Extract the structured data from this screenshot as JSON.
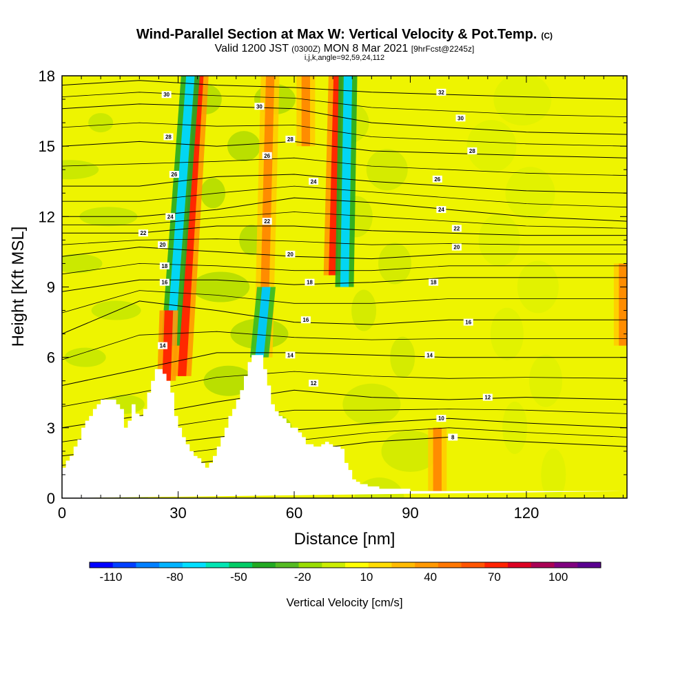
{
  "chart_data": {
    "type": "heatmap",
    "title": "Wind-Parallel Section at Max W: Vertical Velocity & Pot.Temp.",
    "title_mark": "(C)",
    "subtitle": {
      "part1": "Valid 1200 JST",
      "utc": "(0300Z)",
      "part2": "MON 8 Mar 2021",
      "fcst": "[9hrFcst@2245z]"
    },
    "params": "i,j,k,angle=92,59,24,112",
    "xlabel": "Distance [nm]",
    "ylabel": "Height [Kft MSL]",
    "xlim": [
      0,
      146
    ],
    "ylim": [
      0,
      18
    ],
    "xticks": [
      0,
      30,
      60,
      90,
      120
    ],
    "yticks": [
      0,
      3,
      6,
      9,
      12,
      15,
      18
    ],
    "colorbar": {
      "label": "Vertical Velocity [cm/s]",
      "tick_labels": [
        -110,
        -80,
        -50,
        -20,
        10,
        40,
        70,
        100
      ],
      "colors": [
        "#0000ff",
        "#0040ff",
        "#0080ff",
        "#00b4ff",
        "#00e0ff",
        "#00e6b4",
        "#00cc66",
        "#22aa22",
        "#55bb22",
        "#99dd00",
        "#ccee00",
        "#ffff00",
        "#ffdd00",
        "#ffbb00",
        "#ff9900",
        "#ff7700",
        "#ff5500",
        "#ff2200",
        "#dd0022",
        "#aa0055",
        "#800080",
        "#5a0090"
      ]
    },
    "terrain_profile": {
      "x_nm": [
        0,
        1,
        2,
        3,
        4,
        5,
        6,
        7,
        8,
        9,
        10,
        11,
        12,
        13,
        14,
        15,
        16,
        17,
        18,
        19,
        20,
        21,
        22,
        23,
        24,
        25,
        26,
        27,
        28,
        29,
        30,
        31,
        32,
        33,
        34,
        35,
        36,
        37,
        38,
        39,
        40,
        41,
        42,
        43,
        44,
        45,
        46,
        47,
        48,
        49,
        50,
        51,
        52,
        53,
        54,
        55,
        56,
        57,
        58,
        59,
        60,
        61,
        62,
        63,
        64,
        65,
        66,
        67,
        68,
        69,
        70,
        71,
        72,
        73,
        74,
        75,
        76,
        77,
        78,
        79,
        80,
        81,
        82,
        83,
        84,
        85,
        86,
        87,
        88,
        89,
        90,
        91,
        92,
        93,
        94,
        95,
        96,
        97,
        98,
        99,
        100,
        101,
        102,
        103,
        104,
        105,
        106,
        107,
        108,
        109,
        110,
        111,
        112,
        113,
        114,
        115,
        116,
        117,
        118,
        119,
        120,
        121,
        122,
        123,
        124,
        125,
        126,
        127,
        128,
        129,
        130,
        131,
        132,
        133,
        134,
        135,
        136,
        137,
        138,
        139,
        140,
        141,
        142,
        143,
        144,
        145,
        146
      ],
      "height_kft": [
        1.3,
        1.6,
        1.8,
        2.2,
        2.5,
        3.0,
        3.3,
        3.5,
        3.8,
        4.0,
        4.2,
        4.2,
        4.2,
        4.2,
        4.0,
        3.8,
        3.0,
        3.3,
        4.0,
        3.6,
        3.5,
        3.8,
        4.5,
        5.0,
        5.5,
        5.5,
        5.3,
        5.0,
        4.5,
        3.5,
        3.0,
        2.6,
        2.3,
        2.0,
        1.8,
        1.7,
        1.5,
        1.3,
        1.5,
        1.8,
        2.2,
        2.6,
        3.0,
        3.5,
        3.8,
        4.2,
        4.6,
        5.2,
        5.8,
        6.1,
        6.1,
        6.1,
        5.5,
        4.8,
        4.0,
        3.7,
        3.5,
        3.4,
        3.2,
        3.0,
        3.0,
        2.8,
        2.6,
        2.3,
        2.3,
        2.2,
        2.2,
        2.3,
        2.4,
        2.3,
        2.2,
        2.2,
        2.1,
        1.5,
        1.2,
        0.8,
        0.7,
        0.6,
        0.6,
        0.5,
        0.5,
        0.5,
        0.4,
        0.4,
        0.4,
        0.4,
        0.4,
        0.4,
        0.4,
        0.4,
        0.3,
        0.3,
        0.3,
        0.3,
        0.3,
        0.3,
        0.3,
        0.3,
        0.3,
        0.3,
        0.3,
        0.3,
        0.3,
        0.3,
        0.3,
        0.3,
        0.3,
        0.3,
        0.3,
        0.3,
        0.3,
        0.3,
        0.3,
        0.3,
        0.3,
        0.3,
        0.3,
        0.3,
        0.3,
        0.3,
        0.3,
        0.3,
        0.3,
        0.3,
        0.3,
        0.3,
        0.3,
        0.3,
        0.3,
        0.3,
        0.3,
        0.3,
        0.3,
        0.3,
        0.3,
        0.3,
        0.3,
        0.3,
        0.3,
        0.3,
        0.3,
        0.3,
        0.3,
        0.3,
        0.3
      ]
    },
    "vertical_velocity_features": [
      {
        "name": "updraft",
        "x_nm": 31,
        "base_kft": 5.2,
        "top_kft": 18,
        "tilt_nm_per_kft": 0.35,
        "w_cm_s": 80
      },
      {
        "name": "downdraft",
        "x_nm": 28,
        "base_kft": 6.5,
        "top_kft": 18,
        "tilt_nm_per_kft": 0.45,
        "w_cm_s": -90
      },
      {
        "name": "updraft",
        "x_nm": 27,
        "base_kft": 5.0,
        "top_kft": 8,
        "tilt_nm_per_kft": 0.2,
        "w_cm_s": 70
      },
      {
        "name": "updraft",
        "x_nm": 52,
        "base_kft": 6.0,
        "top_kft": 18,
        "tilt_nm_per_kft": 0.15,
        "w_cm_s": 40
      },
      {
        "name": "downdraft",
        "x_nm": 51,
        "base_kft": 6.0,
        "top_kft": 9,
        "tilt_nm_per_kft": 0.6,
        "w_cm_s": -60
      },
      {
        "name": "updraft",
        "x_nm": 70,
        "base_kft": 9.5,
        "top_kft": 18,
        "tilt_nm_per_kft": 0.15,
        "w_cm_s": 70
      },
      {
        "name": "downdraft",
        "x_nm": 73,
        "base_kft": 9.0,
        "top_kft": 18,
        "tilt_nm_per_kft": 0.1,
        "w_cm_s": -80
      },
      {
        "name": "updraft",
        "x_nm": 63,
        "base_kft": 15,
        "top_kft": 18,
        "tilt_nm_per_kft": 0.0,
        "w_cm_s": 40
      },
      {
        "name": "updraft",
        "x_nm": 145,
        "base_kft": 6.5,
        "top_kft": 10,
        "tilt_nm_per_kft": 0.0,
        "w_cm_s": 40
      },
      {
        "name": "updraft",
        "x_nm": 97,
        "base_kft": 0.3,
        "top_kft": 3,
        "tilt_nm_per_kft": 0.0,
        "w_cm_s": 40
      }
    ],
    "pot_temp_isentropes_kft_at_x": {
      "x_nm": [
        0,
        20,
        40,
        60,
        80,
        100,
        120,
        146
      ],
      "levels": [
        {
          "theta": "8",
          "h": [
            1.0,
            1.2,
            1.6,
            2.0,
            2.4,
            2.6,
            2.4,
            2.2
          ]
        },
        {
          "theta": "10",
          "h": [
            1.8,
            2.2,
            2.6,
            2.9,
            3.2,
            3.4,
            3.2,
            3.0
          ]
        },
        {
          "theta": "12",
          "h": [
            3.0,
            3.5,
            4.1,
            4.6,
            4.3,
            4.2,
            4.3,
            4.2
          ]
        },
        {
          "theta": "14",
          "h": [
            4.8,
            5.5,
            6.2,
            6.2,
            6.1,
            6.0,
            6.0,
            6.0
          ]
        },
        {
          "theta": "16",
          "h": [
            7.0,
            8.4,
            8.0,
            7.5,
            7.4,
            7.6,
            7.6,
            7.6
          ]
        },
        {
          "theta": "18",
          "h": [
            8.8,
            9.3,
            9.3,
            9.1,
            9.2,
            9.4,
            9.4,
            9.4
          ]
        },
        {
          "theta": "20",
          "h": [
            10.3,
            10.7,
            10.5,
            10.3,
            10.2,
            10.4,
            10.4,
            10.4
          ]
        },
        {
          "theta": "22",
          "h": [
            11.3,
            11.3,
            11.6,
            11.6,
            11.4,
            11.3,
            11.2,
            11.2
          ]
        },
        {
          "theta": "24",
          "h": [
            12.0,
            12.0,
            12.3,
            12.8,
            12.6,
            12.3,
            12.0,
            11.8
          ]
        },
        {
          "theta": "26",
          "h": [
            13.3,
            13.3,
            13.7,
            13.8,
            13.5,
            13.3,
            13.1,
            13.0
          ]
        },
        {
          "theta": "28",
          "h": [
            15.0,
            15.2,
            15.0,
            15.2,
            14.8,
            14.7,
            14.6,
            14.5
          ]
        },
        {
          "theta": "30",
          "h": [
            16.6,
            16.8,
            16.7,
            16.6,
            16.0,
            15.8,
            15.6,
            15.5
          ]
        },
        {
          "theta": "32",
          "h": [
            17.6,
            17.8,
            17.6,
            17.5,
            17.3,
            17.2,
            17.1,
            17.0
          ]
        }
      ]
    },
    "contour_label_positions": [
      {
        "text": "32",
        "x": 98,
        "y": 17.3
      },
      {
        "text": "30",
        "x": 103,
        "y": 16.2
      },
      {
        "text": "30",
        "x": 51,
        "y": 16.7
      },
      {
        "text": "30",
        "x": 27,
        "y": 17.2
      },
      {
        "text": "28",
        "x": 106,
        "y": 14.8
      },
      {
        "text": "28",
        "x": 27.5,
        "y": 15.4
      },
      {
        "text": "28",
        "x": 59,
        "y": 15.3
      },
      {
        "text": "26",
        "x": 97,
        "y": 13.6
      },
      {
        "text": "26",
        "x": 53,
        "y": 14.6
      },
      {
        "text": "26",
        "x": 29,
        "y": 13.8
      },
      {
        "text": "24",
        "x": 65,
        "y": 13.5
      },
      {
        "text": "24",
        "x": 98,
        "y": 12.3
      },
      {
        "text": "24",
        "x": 28,
        "y": 12.0
      },
      {
        "text": "22",
        "x": 102,
        "y": 11.5
      },
      {
        "text": "22",
        "x": 53,
        "y": 11.8
      },
      {
        "text": "22",
        "x": 21,
        "y": 11.3
      },
      {
        "text": "20",
        "x": 102,
        "y": 10.7
      },
      {
        "text": "20",
        "x": 59,
        "y": 10.4
      },
      {
        "text": "20",
        "x": 26,
        "y": 10.8
      },
      {
        "text": "18",
        "x": 96,
        "y": 9.2
      },
      {
        "text": "18",
        "x": 64,
        "y": 9.2
      },
      {
        "text": "18",
        "x": 26.5,
        "y": 9.9
      },
      {
        "text": "16",
        "x": 26.5,
        "y": 9.2
      },
      {
        "text": "16",
        "x": 63,
        "y": 7.6
      },
      {
        "text": "16",
        "x": 105,
        "y": 7.5
      },
      {
        "text": "14",
        "x": 26,
        "y": 6.5
      },
      {
        "text": "14",
        "x": 59,
        "y": 6.1
      },
      {
        "text": "14",
        "x": 95,
        "y": 6.1
      },
      {
        "text": "12",
        "x": 65,
        "y": 4.9
      },
      {
        "text": "12",
        "x": 110,
        "y": 4.3
      },
      {
        "text": "10",
        "x": 98,
        "y": 3.4
      },
      {
        "text": "8",
        "x": 101,
        "y": 2.6
      }
    ]
  }
}
